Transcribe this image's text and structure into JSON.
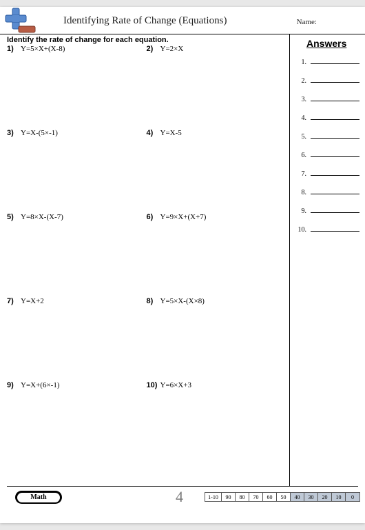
{
  "header": {
    "title": "Identifying Rate of Change (Equations)",
    "name_label": "Name:"
  },
  "instruction": "Identify the rate of change for each equation.",
  "problems": [
    {
      "n": "1)",
      "eq": "Y=5×X+(X-8)"
    },
    {
      "n": "2)",
      "eq": "Y=2×X"
    },
    {
      "n": "3)",
      "eq": "Y=X-(5×-1)"
    },
    {
      "n": "4)",
      "eq": "Y=X-5"
    },
    {
      "n": "5)",
      "eq": "Y=8×X-(X-7)"
    },
    {
      "n": "6)",
      "eq": "Y=9×X+(X+7)"
    },
    {
      "n": "7)",
      "eq": "Y=X+2"
    },
    {
      "n": "8)",
      "eq": "Y=5×X-(X×8)"
    },
    {
      "n": "9)",
      "eq": "Y=X+(6×-1)"
    },
    {
      "n": "10)",
      "eq": "Y=6×X+3"
    }
  ],
  "answers": {
    "title": "Answers",
    "count": 10
  },
  "footer": {
    "math_label": "Math",
    "page_number": "4",
    "score_label": "1-10",
    "scores": [
      "90",
      "80",
      "70",
      "60",
      "50",
      "40",
      "30",
      "20",
      "10",
      "0"
    ],
    "shaded_from_index": 5
  },
  "colors": {
    "page_bg": "#ffffff",
    "body_bg": "#e8e8e8",
    "shade": "#bfc9d6",
    "pagenum": "#7a7a7a"
  }
}
